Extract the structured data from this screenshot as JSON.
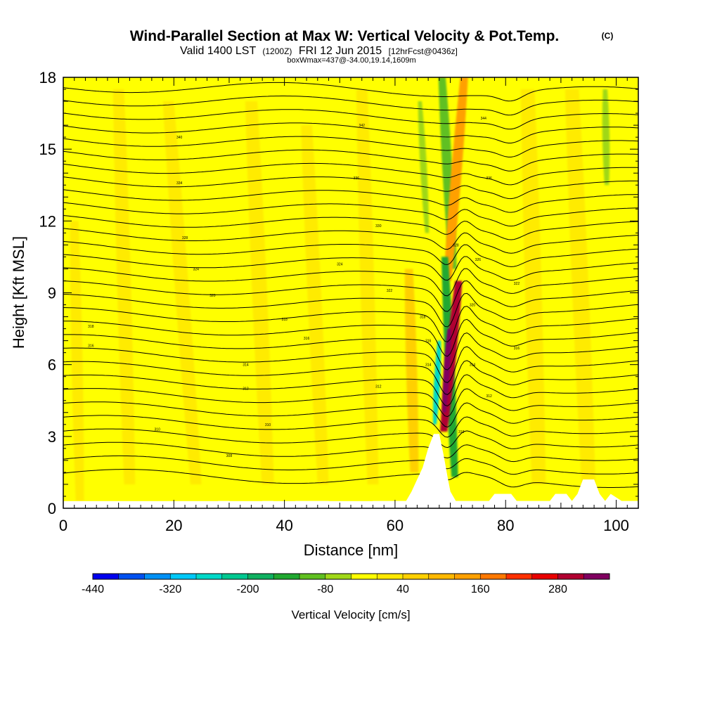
{
  "header": {
    "title": "Wind-Parallel Section at Max W: Vertical Velocity & Pot.Temp.",
    "copyright": "(C)",
    "valid_line_a": "Valid 1400 LST",
    "valid_line_b": "(1200Z)",
    "valid_line_c": "FRI 12 Jun 2015",
    "valid_line_d": "[12hrFcst@0436z]",
    "box_line": "boxWmax=437@-34.00,19.14,1609m"
  },
  "chart_data": {
    "type": "heatmap",
    "xlabel": "Distance [nm]",
    "ylabel": "Height [Kft MSL]",
    "xlim": [
      0,
      104
    ],
    "ylim": [
      0,
      18
    ],
    "xticks": [
      0,
      20,
      40,
      60,
      80,
      100
    ],
    "yticks": [
      0,
      3,
      6,
      9,
      12,
      15,
      18
    ],
    "grid": false,
    "colorbar": {
      "label": "Vertical Velocity [cm/s]",
      "tick_values": [
        -440,
        -320,
        -200,
        -80,
        40,
        160,
        280
      ],
      "bins": [
        -440,
        -400,
        -360,
        -320,
        -280,
        -240,
        -200,
        -160,
        -120,
        -80,
        -40,
        0,
        40,
        80,
        120,
        160,
        200,
        240,
        280,
        320,
        360
      ],
      "colors": [
        "#0000ee",
        "#0050f0",
        "#0090f5",
        "#00c8f8",
        "#00d8c8",
        "#00c890",
        "#10b060",
        "#20a830",
        "#60c020",
        "#a0d818",
        "#ffff00",
        "#ffe800",
        "#ffd000",
        "#ffb800",
        "#ffa000",
        "#ff7800",
        "#ff3000",
        "#e80000",
        "#b00030",
        "#800060"
      ]
    },
    "max_updraft": {
      "value_cm_s": 437,
      "x_nm": 69,
      "height_kft": 5.3
    },
    "terrain_profile": {
      "x": [
        0,
        27,
        28,
        30,
        31,
        35,
        36,
        38,
        39,
        41,
        42,
        48,
        49,
        55,
        56,
        62,
        63,
        64,
        65,
        66,
        67,
        68,
        68.8,
        69.5,
        70,
        71,
        77,
        78,
        81,
        82,
        88,
        89,
        91,
        92,
        93,
        94,
        96,
        97,
        98,
        99,
        101,
        104
      ],
      "y": [
        0,
        0,
        0.3,
        0.3,
        0,
        0,
        0.3,
        0.3,
        0,
        0,
        0.3,
        0.3,
        0,
        0,
        0.3,
        0.3,
        0.7,
        1.2,
        1.7,
        2.5,
        3.1,
        3.1,
        2.2,
        1.3,
        0.7,
        0.3,
        0.3,
        0.6,
        0.6,
        0.3,
        0.3,
        0.6,
        0.6,
        0.3,
        0.6,
        1.2,
        1.2,
        0.6,
        0.3,
        0.6,
        0.3,
        0.3
      ]
    },
    "theta_contours": {
      "interval_K": 2,
      "count": 30,
      "base_height_kft": 1.1,
      "spacing_kft": 0.56,
      "labels": [
        {
          "x": 5,
          "y": 7.6,
          "text": "318"
        },
        {
          "x": 5,
          "y": 6.8,
          "text": "316"
        },
        {
          "x": 17,
          "y": 3.3,
          "text": "310"
        },
        {
          "x": 21,
          "y": 15.5,
          "text": "340"
        },
        {
          "x": 21,
          "y": 13.6,
          "text": "334"
        },
        {
          "x": 22,
          "y": 11.3,
          "text": "328"
        },
        {
          "x": 24,
          "y": 10.0,
          "text": "324"
        },
        {
          "x": 27,
          "y": 8.9,
          "text": "320"
        },
        {
          "x": 30,
          "y": 2.2,
          "text": "308"
        },
        {
          "x": 33,
          "y": 6.0,
          "text": "314"
        },
        {
          "x": 33,
          "y": 5.0,
          "text": "312"
        },
        {
          "x": 37,
          "y": 3.5,
          "text": "310"
        },
        {
          "x": 40,
          "y": 7.9,
          "text": "318"
        },
        {
          "x": 44,
          "y": 7.1,
          "text": "316"
        },
        {
          "x": 50,
          "y": 10.2,
          "text": "324"
        },
        {
          "x": 53,
          "y": 13.8,
          "text": "336"
        },
        {
          "x": 54,
          "y": 16.0,
          "text": "342"
        },
        {
          "x": 57,
          "y": 11.8,
          "text": "330"
        },
        {
          "x": 57,
          "y": 5.1,
          "text": "312"
        },
        {
          "x": 59,
          "y": 9.1,
          "text": "322"
        },
        {
          "x": 65,
          "y": 8.0,
          "text": "318"
        },
        {
          "x": 66,
          "y": 7.0,
          "text": "316"
        },
        {
          "x": 66,
          "y": 6.0,
          "text": "314"
        },
        {
          "x": 71,
          "y": 11.0,
          "text": "328"
        },
        {
          "x": 72,
          "y": 3.2,
          "text": "310"
        },
        {
          "x": 74,
          "y": 6.0,
          "text": "314"
        },
        {
          "x": 74,
          "y": 8.5,
          "text": "320"
        },
        {
          "x": 75,
          "y": 10.4,
          "text": "326"
        },
        {
          "x": 76,
          "y": 16.3,
          "text": "344"
        },
        {
          "x": 77,
          "y": 13.8,
          "text": "336"
        },
        {
          "x": 77,
          "y": 4.7,
          "text": "312"
        },
        {
          "x": 82,
          "y": 6.7,
          "text": "316"
        },
        {
          "x": 82,
          "y": 9.4,
          "text": "322"
        }
      ]
    },
    "w_features": [
      {
        "name": "main-updraft",
        "value": 300,
        "x_bottom": 68.8,
        "x_top": 71.5,
        "y_bottom": 3.2,
        "y_top": 9.5,
        "width_nm": 1.3
      },
      {
        "name": "main-updraft-core",
        "value": 360,
        "x_bottom": 68.9,
        "x_top": 69.8,
        "y_bottom": 4.0,
        "y_top": 7.5,
        "width_nm": 0.6
      },
      {
        "name": "upper-updraft",
        "value": 140,
        "x_bottom": 69.5,
        "x_top": 72.5,
        "y_bottom": 9.5,
        "y_top": 18,
        "width_nm": 1.4
      },
      {
        "name": "main-downdraft",
        "value": -160,
        "x_bottom": 70.8,
        "x_top": 69.0,
        "y_bottom": 1.3,
        "y_top": 10.5,
        "width_nm": 1.2
      },
      {
        "name": "downdraft-lower",
        "value": -280,
        "x_bottom": 67.2,
        "x_top": 68.0,
        "y_bottom": 3.5,
        "y_top": 7.0,
        "width_nm": 0.6
      },
      {
        "name": "upper-downdraft",
        "value": -120,
        "x_bottom": 70.5,
        "x_top": 68.5,
        "y_bottom": 10,
        "y_top": 18,
        "width_nm": 1.3
      },
      {
        "name": "left-upper-downdraft",
        "value": -80,
        "x_bottom": 65.8,
        "x_top": 64.5,
        "y_bottom": 11.5,
        "y_top": 17.0,
        "width_nm": 0.7
      },
      {
        "name": "right-upper-downdraft",
        "value": -80,
        "x_bottom": 98.3,
        "x_top": 98.0,
        "y_bottom": 13.5,
        "y_top": 17.5,
        "width_nm": 0.8
      },
      {
        "name": "lee-updraft",
        "value": 60,
        "x_bottom": 63.5,
        "x_top": 62.5,
        "y_bottom": 1.5,
        "y_top": 10.0,
        "width_nm": 1.5
      },
      {
        "name": "wave-up-1",
        "value": 20,
        "x_bottom": 12,
        "x_top": 10,
        "y_bottom": 1.0,
        "y_top": 17.5,
        "width_nm": 2.0
      },
      {
        "name": "wave-up-2",
        "value": 20,
        "x_bottom": 24,
        "x_top": 19,
        "y_bottom": 1.0,
        "y_top": 17.0,
        "width_nm": 2.0
      },
      {
        "name": "wave-up-3",
        "value": 20,
        "x_bottom": 37,
        "x_top": 34,
        "y_bottom": 1.0,
        "y_top": 17.0,
        "width_nm": 2.2
      },
      {
        "name": "wave-up-4",
        "value": 20,
        "x_bottom": 47,
        "x_top": 44,
        "y_bottom": 1.0,
        "y_top": 16.0,
        "width_nm": 2.0
      },
      {
        "name": "wave-up-5",
        "value": 20,
        "x_bottom": 56,
        "x_top": 54,
        "y_bottom": 1.0,
        "y_top": 17.5,
        "width_nm": 2.0
      },
      {
        "name": "wave-up-6",
        "value": 20,
        "x_bottom": 86,
        "x_top": 84,
        "y_bottom": 1.0,
        "y_top": 17.5,
        "width_nm": 2.5
      },
      {
        "name": "wave-up-7",
        "value": 20,
        "x_bottom": 95,
        "x_top": 92,
        "y_bottom": 1.0,
        "y_top": 17.5,
        "width_nm": 2.5
      },
      {
        "name": "wave-up-8",
        "value": 20,
        "x_bottom": 3,
        "x_top": 2,
        "y_bottom": 0.3,
        "y_top": 12.0,
        "width_nm": 1.5
      }
    ]
  }
}
